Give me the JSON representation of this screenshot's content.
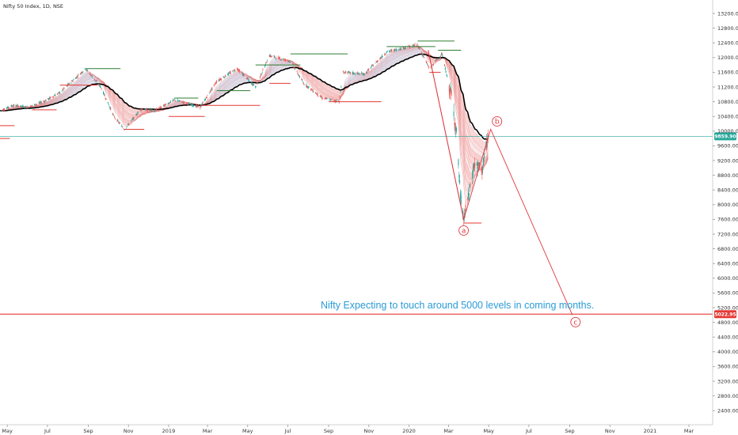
{
  "chart_data": {
    "type": "line",
    "title": "Nifty 50 Index, 1D, NSE",
    "y_axis": {
      "ylim": [
        2000,
        13400
      ],
      "ticks": [
        2400,
        2800,
        3200,
        3600,
        4000,
        4400,
        4800,
        5200,
        5600,
        6000,
        6400,
        6800,
        7200,
        7600,
        8000,
        8400,
        8800,
        9200,
        9600,
        10000,
        10400,
        10800,
        11200,
        11600,
        12000,
        12400,
        12800,
        13200
      ],
      "tick_labels": [
        "2400.00",
        "2800.00",
        "3200.00",
        "3600.00",
        "4000.00",
        "4400.00",
        "4800.00",
        "5200.00",
        "5600.00",
        "6000.00",
        "6400.00",
        "6800.00",
        "7200.00",
        "7600.00",
        "8000.00",
        "8400.00",
        "8800.00",
        "9200.00",
        "9600.00",
        "10000.00",
        "10400.00",
        "10800.00",
        "11200.00",
        "11600.00",
        "12000.00",
        "12400.00",
        "12800.00",
        "13200.00"
      ]
    },
    "x_axis": {
      "start_date": "2018-04-20",
      "end_date": "2021-04-06",
      "ticks": [
        {
          "date": "2018-05-01",
          "label": "May"
        },
        {
          "date": "2018-07-01",
          "label": "Jul"
        },
        {
          "date": "2018-09-01",
          "label": "Sep"
        },
        {
          "date": "2018-11-01",
          "label": "Nov"
        },
        {
          "date": "2019-01-01",
          "label": "2019"
        },
        {
          "date": "2019-03-01",
          "label": "Mar"
        },
        {
          "date": "2019-05-01",
          "label": "May"
        },
        {
          "date": "2019-07-01",
          "label": "Jul"
        },
        {
          "date": "2019-09-01",
          "label": "Sep"
        },
        {
          "date": "2019-11-01",
          "label": "Nov"
        },
        {
          "date": "2020-01-01",
          "label": "2020"
        },
        {
          "date": "2020-03-01",
          "label": "Mar"
        },
        {
          "date": "2020-05-01",
          "label": "May"
        },
        {
          "date": "2020-07-01",
          "label": "Jul"
        },
        {
          "date": "2020-09-01",
          "label": "Sep"
        },
        {
          "date": "2020-11-01",
          "label": "Nov"
        },
        {
          "date": "2021-01-01",
          "label": "2021"
        },
        {
          "date": "2021-03-01",
          "label": "Mar"
        }
      ]
    },
    "price_series": {
      "name": "",
      "color": "#333333",
      "points": [
        {
          "x": "2018-04-20",
          "y": 10550
        },
        {
          "x": "2018-05-10",
          "y": 10700
        },
        {
          "x": "2018-06-01",
          "y": 10650
        },
        {
          "x": "2018-06-25",
          "y": 10800
        },
        {
          "x": "2018-07-20",
          "y": 11050
        },
        {
          "x": "2018-08-10",
          "y": 11400
        },
        {
          "x": "2018-08-28",
          "y": 11700
        },
        {
          "x": "2018-09-20",
          "y": 11200
        },
        {
          "x": "2018-10-10",
          "y": 10400
        },
        {
          "x": "2018-10-26",
          "y": 10050
        },
        {
          "x": "2018-11-20",
          "y": 10600
        },
        {
          "x": "2018-12-10",
          "y": 10550
        },
        {
          "x": "2019-01-10",
          "y": 10850
        },
        {
          "x": "2019-02-18",
          "y": 10650
        },
        {
          "x": "2019-03-15",
          "y": 11350
        },
        {
          "x": "2019-04-15",
          "y": 11700
        },
        {
          "x": "2019-05-13",
          "y": 11200
        },
        {
          "x": "2019-06-03",
          "y": 12050
        },
        {
          "x": "2019-07-05",
          "y": 11900
        },
        {
          "x": "2019-07-25",
          "y": 11300
        },
        {
          "x": "2019-08-22",
          "y": 10900
        },
        {
          "x": "2019-09-17",
          "y": 10800
        },
        {
          "x": "2019-09-23",
          "y": 11600
        },
        {
          "x": "2019-10-25",
          "y": 11550
        },
        {
          "x": "2019-11-28",
          "y": 12150
        },
        {
          "x": "2019-12-20",
          "y": 12250
        },
        {
          "x": "2020-01-14",
          "y": 12350
        },
        {
          "x": "2020-02-01",
          "y": 11700
        },
        {
          "x": "2020-02-20",
          "y": 12100
        },
        {
          "x": "2020-03-06",
          "y": 10900
        },
        {
          "x": "2020-03-13",
          "y": 9950
        },
        {
          "x": "2020-03-19",
          "y": 8250
        },
        {
          "x": "2020-03-24",
          "y": 7600
        },
        {
          "x": "2020-04-01",
          "y": 8300
        },
        {
          "x": "2020-04-09",
          "y": 9100
        },
        {
          "x": "2020-04-21",
          "y": 8950
        },
        {
          "x": "2020-04-30",
          "y": 9850
        }
      ]
    },
    "moving_average_band": {
      "note_colors": {
        "uptrend_fill": "#4a90d9",
        "downtrend_fill": "#e24c4c",
        "ma_long": "#000000"
      }
    },
    "elliott_waves": [
      {
        "label": "a",
        "x": "2020-03-24",
        "y": 7600
      },
      {
        "label": "b",
        "x": "2020-05-04",
        "y": 10050
      },
      {
        "label": "c",
        "x": "2020-09-05",
        "y": 5000
      }
    ],
    "horizontal_lines": [
      {
        "price": 9859.9,
        "label": "9859.90",
        "color": "#26a69a"
      },
      {
        "price": 5022.95,
        "label": "5022.95",
        "color": "#e53935"
      }
    ],
    "annotation": "Nifty Expecting to touch around 5000 levels in coming months.",
    "grid": false,
    "legend": "none"
  },
  "colors": {
    "up": "#26a69a",
    "down": "#ef5350",
    "support_line": "#e53935",
    "resistance_line": "#2e7d32",
    "wave": "#e0383e",
    "annotation": "#2a9bd6"
  }
}
